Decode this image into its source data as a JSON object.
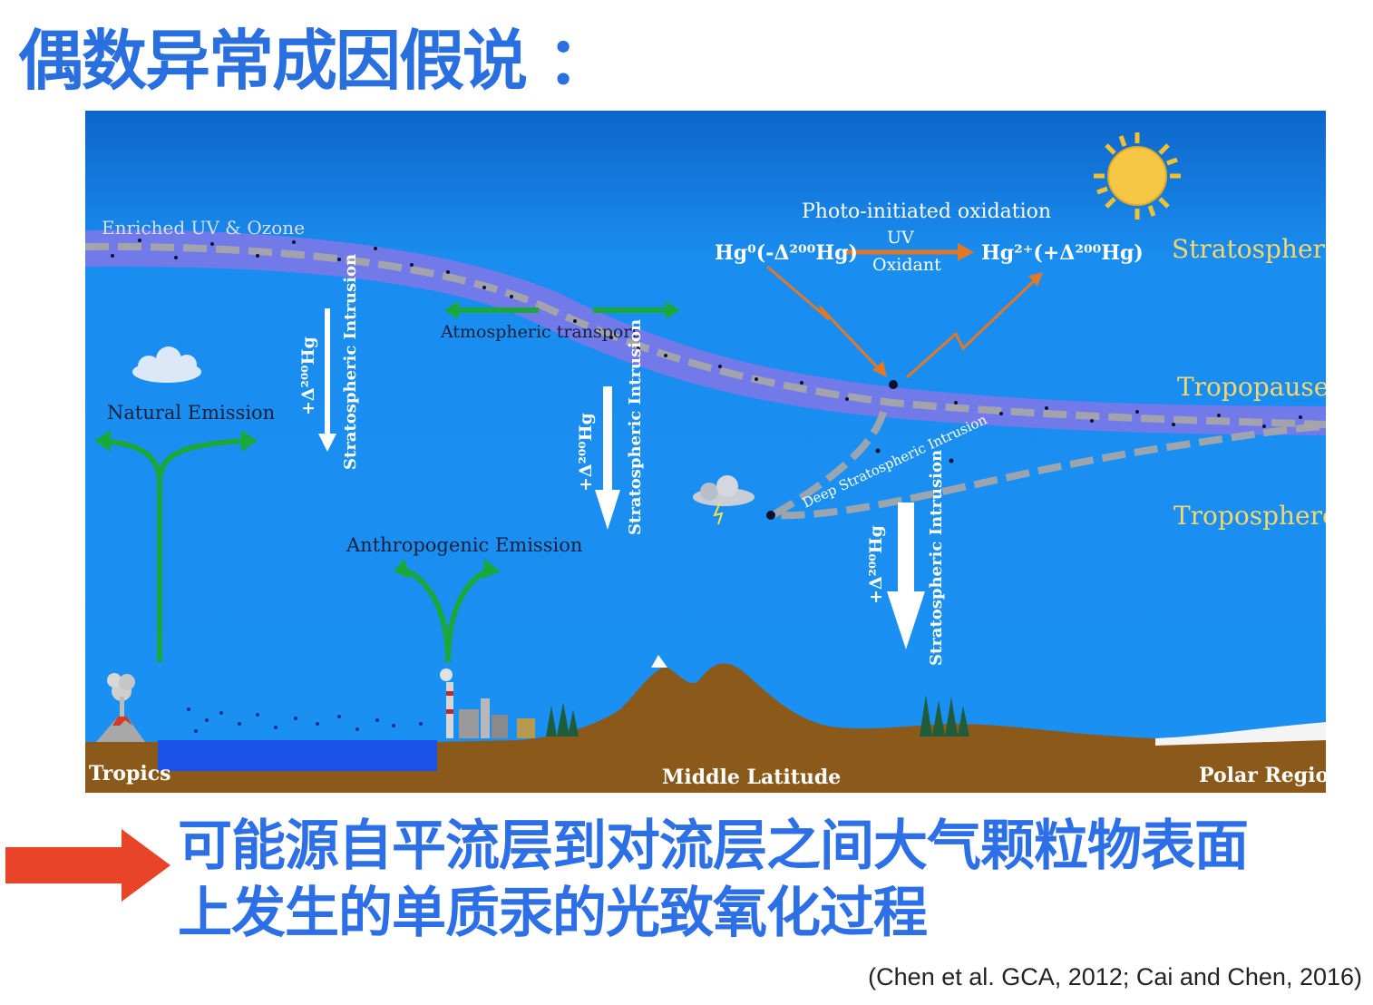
{
  "slide": {
    "title": "偶数异常成因假说 ：",
    "conclusion_line1": "可能源自平流层到对流层之间大气颗粒物表面",
    "conclusion_line2": "上发生的单质汞的光致氧化过程",
    "citation": "(Chen et al. GCA, 2012; Cai and Chen, 2016)"
  },
  "diagram": {
    "layers": {
      "stratosphere": "Stratosphere",
      "tropopause": "Tropopause",
      "troposphere": "Troposphere"
    },
    "regions": {
      "tropics": "Tropics",
      "middle": "Middle Latitude",
      "polar": "Polar Region"
    },
    "labels": {
      "enriched": "Enriched UV & Ozone",
      "photo_title": "Photo-initiated oxidation",
      "uv": "UV",
      "oxidant": "Oxidant",
      "hg0": "Hg⁰(-Δ²⁰⁰Hg)",
      "hg2": "Hg²⁺(+Δ²⁰⁰Hg)",
      "transport": "Atmospheric transport",
      "natural": "Natural Emission",
      "anthropogenic": "Anthropogenic Emission",
      "strat_intrusion": "Stratospheric Intrusion",
      "delta": "+Δ²⁰⁰Hg",
      "deep_intrusion": "Deep Stratospheric Intrusion"
    },
    "colors": {
      "sky": "#1a8ef0",
      "band": "#7a78e8",
      "ground": "#8b5a1a",
      "layer_label": "#f5d76e",
      "arrow_green": "#1aa83a",
      "arrow_orange": "#e0782a",
      "title_blue": "#2a6fe0",
      "red_arrow": "#e8442a"
    }
  }
}
